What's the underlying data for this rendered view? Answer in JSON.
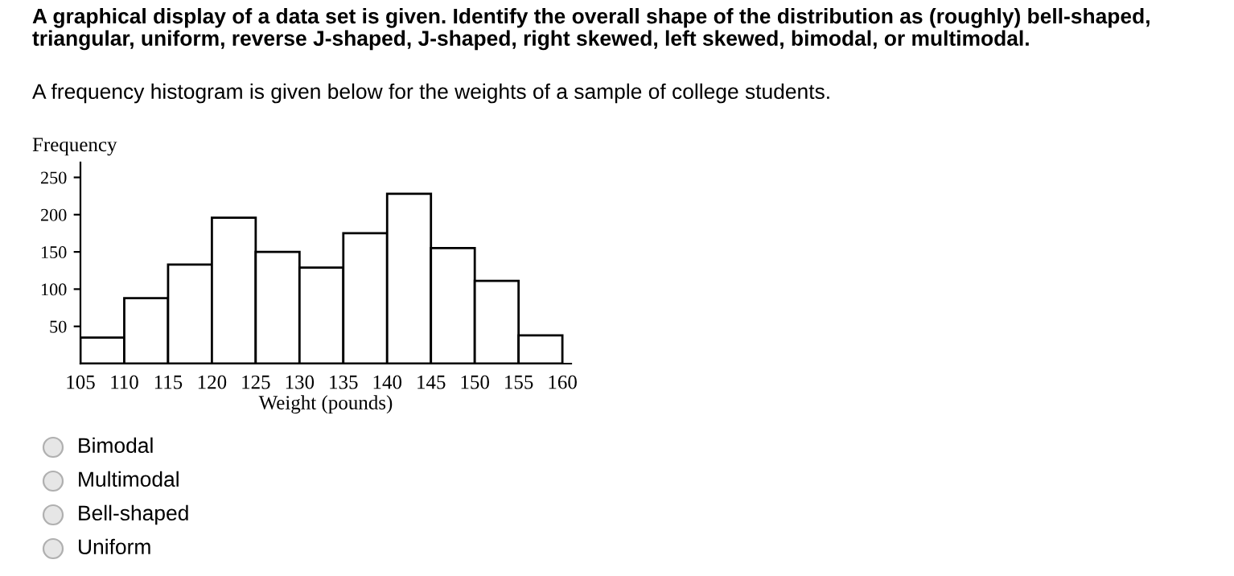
{
  "chart_data": {
    "type": "histogram",
    "title": "A graphical display of a data set is given. Identify the overall shape of the distribution as (roughly) bell-shaped,\ntriangular, uniform, reverse J-shaped, J-shaped, right skewed, left skewed, bimodal, or multimodal.",
    "subtitle": "A frequency histogram is given below for the weights of a sample of college students.",
    "xlabel": "Weight (pounds)",
    "ylabel": "Frequency",
    "bins": [
      105,
      110,
      115,
      120,
      125,
      130,
      135,
      140,
      145,
      150,
      155,
      160
    ],
    "values": [
      35,
      88,
      133,
      196,
      150,
      129,
      175,
      228,
      155,
      111,
      38
    ],
    "color": "#ffffff",
    "xlim": [
      105,
      161
    ],
    "xticks": [
      105,
      110,
      115,
      120,
      125,
      130,
      135,
      140,
      145,
      150,
      155,
      160
    ],
    "ylim": [
      0,
      270
    ],
    "yticks": [
      50,
      100,
      150,
      200,
      250
    ],
    "grid": false,
    "legend": false,
    "annotations": [
      "Bimodal",
      "Multimodal",
      "Bell-shaped",
      "Uniform"
    ]
  }
}
